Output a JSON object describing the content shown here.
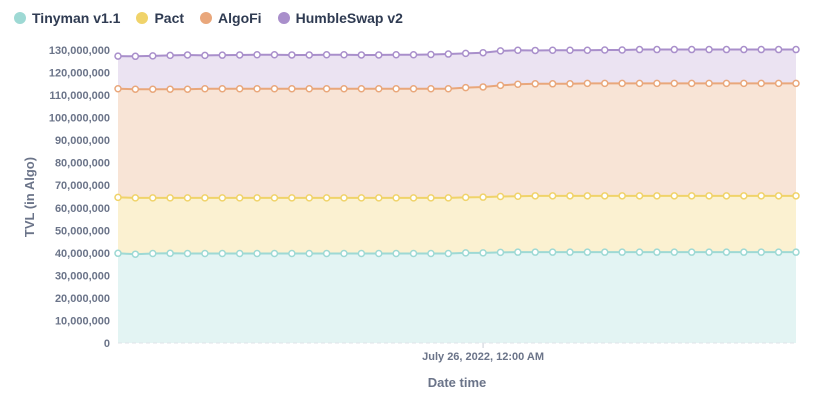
{
  "chart_data": {
    "type": "area",
    "stacked": true,
    "xlabel": "Date time",
    "ylabel": "TVL (in Algo)",
    "ylim": [
      0,
      130000000
    ],
    "yticks": [
      "0",
      "10,000,000",
      "20,000,000",
      "30,000,000",
      "40,000,000",
      "50,000,000",
      "60,000,000",
      "70,000,000",
      "80,000,000",
      "90,000,000",
      "100,000,000",
      "110,000,000",
      "120,000,000",
      "130,000,000"
    ],
    "xtick_labels": [
      {
        "label": "July 26, 2022, 12:00 AM",
        "index": 21
      }
    ],
    "legend_position": "top-left",
    "grid": false,
    "series": [
      {
        "name": "Tinyman v1.1",
        "color": "#9ed9d4",
        "fill": "#e3f4f3",
        "values": [
          39.8,
          39.4,
          39.7,
          39.8,
          39.7,
          39.7,
          39.7,
          39.7,
          39.7,
          39.7,
          39.7,
          39.7,
          39.7,
          39.7,
          39.7,
          39.7,
          39.7,
          39.7,
          39.7,
          39.7,
          40.0,
          40.0,
          40.2,
          40.3,
          40.3,
          40.3,
          40.3,
          40.3,
          40.3,
          40.3,
          40.3,
          40.3,
          40.3,
          40.3,
          40.3,
          40.3,
          40.3,
          40.3,
          40.3,
          40.3
        ]
      },
      {
        "name": "Pact",
        "color": "#f0d36a",
        "fill": "#fbf1d1",
        "values": [
          64.6,
          64.4,
          64.4,
          64.4,
          64.4,
          64.4,
          64.4,
          64.4,
          64.4,
          64.4,
          64.4,
          64.4,
          64.4,
          64.4,
          64.4,
          64.4,
          64.4,
          64.4,
          64.4,
          64.4,
          64.6,
          64.7,
          65.0,
          65.1,
          65.3,
          65.3,
          65.3,
          65.3,
          65.3,
          65.3,
          65.3,
          65.3,
          65.3,
          65.3,
          65.3,
          65.3,
          65.3,
          65.3,
          65.3,
          65.3
        ]
      },
      {
        "name": "AlgoFi",
        "color": "#e9a77b",
        "fill": "#f8e4d6",
        "values": [
          112.8,
          112.6,
          112.6,
          112.6,
          112.6,
          112.8,
          112.8,
          112.8,
          112.8,
          112.8,
          112.8,
          112.8,
          112.8,
          112.8,
          112.8,
          112.8,
          112.8,
          112.8,
          112.8,
          112.8,
          113.3,
          113.6,
          114.3,
          114.8,
          115.0,
          115.0,
          115.0,
          115.2,
          115.2,
          115.2,
          115.2,
          115.2,
          115.2,
          115.2,
          115.2,
          115.2,
          115.2,
          115.2,
          115.2,
          115.2
        ]
      },
      {
        "name": "HumbleSwap v2",
        "color": "#a98fcb",
        "fill": "#ebe3f2",
        "values": [
          127.3,
          127.2,
          127.4,
          127.6,
          127.8,
          127.6,
          127.7,
          127.8,
          127.9,
          127.9,
          127.8,
          127.8,
          127.9,
          127.9,
          127.8,
          127.8,
          127.9,
          127.9,
          128.0,
          128.2,
          128.5,
          128.8,
          129.6,
          129.9,
          129.8,
          129.9,
          129.9,
          129.9,
          130.0,
          130.0,
          130.2,
          130.2,
          130.2,
          130.2,
          130.2,
          130.2,
          130.2,
          130.2,
          130.2,
          130.2
        ]
      }
    ],
    "units_note": "values in millions of Algo (cumulative stacked totals)"
  }
}
